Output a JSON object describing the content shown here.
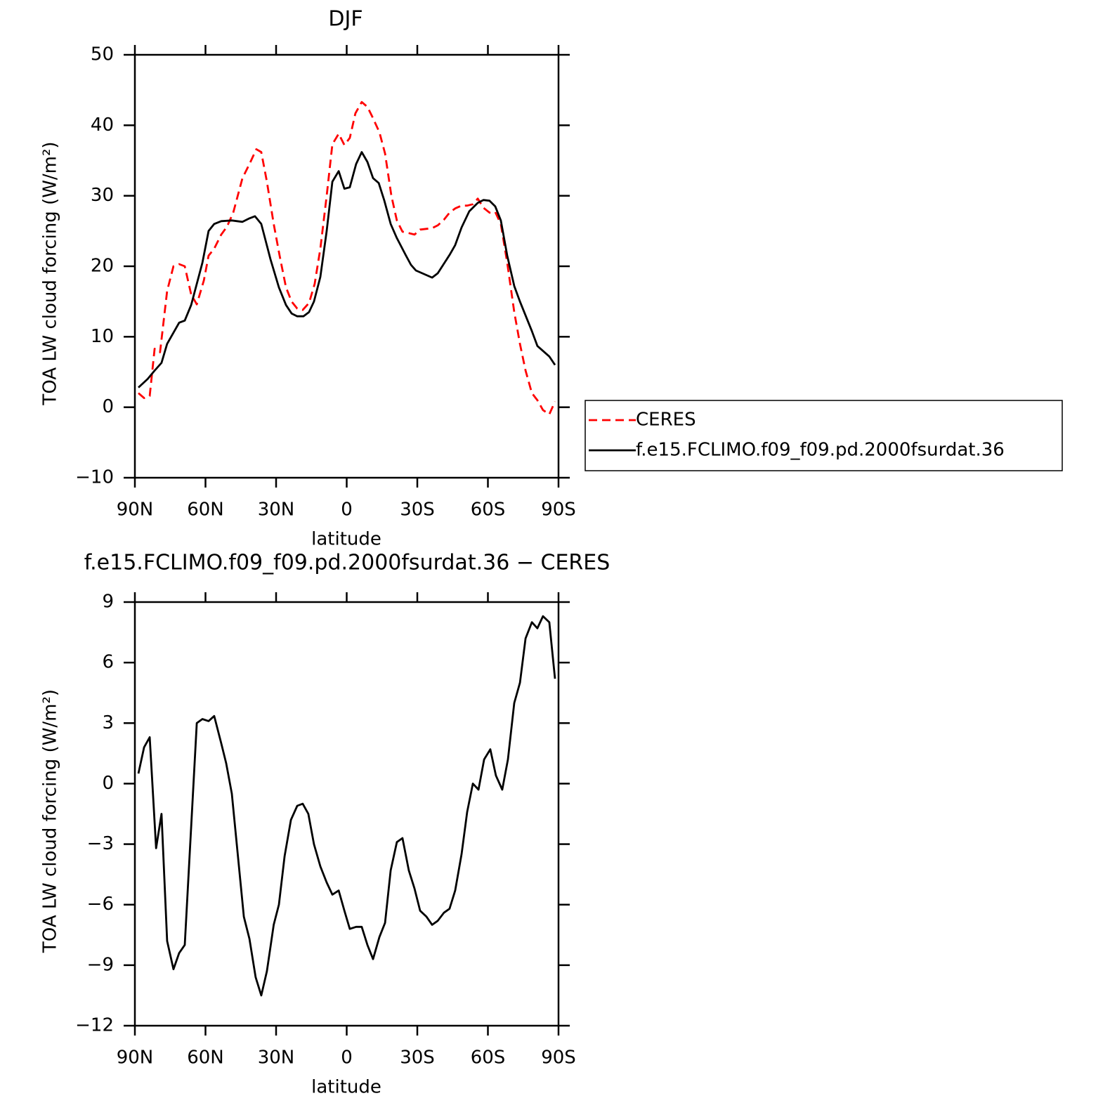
{
  "chart_data": [
    {
      "type": "line",
      "title": "DJF",
      "xlabel": "latitude",
      "ylabel": "TOA LW cloud forcing (W/m²)",
      "xlim": [
        90,
        -90
      ],
      "xticks": [
        {
          "value": 90,
          "label": "90N"
        },
        {
          "value": 60,
          "label": "60N"
        },
        {
          "value": 30,
          "label": "30N"
        },
        0,
        {
          "value": -30,
          "label": "30S"
        },
        {
          "value": -60,
          "label": "60S"
        },
        {
          "value": -90,
          "label": "90S"
        }
      ],
      "ylim": [
        -10,
        50
      ],
      "yticks": [
        {
          "value": -10,
          "label": "−10"
        },
        0,
        10,
        20,
        30,
        40,
        50
      ],
      "legend": "right",
      "series": [
        {
          "name": "CERES",
          "color": "#ff0000",
          "dashed": true,
          "x": [
            88.5,
            86.1,
            83.7,
            81.6,
            79.3,
            76.3,
            73.6,
            71.2,
            68.8,
            66.1,
            63.7,
            60.7,
            58.7,
            56.3,
            53.3,
            50.9,
            48.2,
            44.3,
            41.3,
            38.4,
            36.3,
            33.9,
            31,
            28.5,
            25.8,
            23.4,
            21,
            18.7,
            16,
            13.6,
            11.2,
            8.5,
            6.1,
            3.4,
            1,
            -1.3,
            -3.7,
            -6.4,
            -8.8,
            -11.2,
            -13.9,
            -16.3,
            -19,
            -21.3,
            -23.7,
            -26.4,
            -28.8,
            -31.2,
            -36.3,
            -38.7,
            -41.3,
            -43.7,
            -46.1,
            -48.8,
            -51.2,
            -53.6,
            -55.7,
            -58.1,
            -60.7,
            -63.1,
            -65.5,
            -68.2,
            -71.2,
            -73.6,
            -76,
            -78.7,
            -81,
            -83.4,
            -86.1,
            -88.5
          ],
          "values": [
            2,
            1.3,
            1.6,
            8.3,
            7.8,
            16.5,
            20,
            20.3,
            20,
            16,
            14.6,
            18,
            21.5,
            22.5,
            24.5,
            25.6,
            27.6,
            32.5,
            34.5,
            36.6,
            36.2,
            32,
            26,
            21.5,
            17,
            15,
            14,
            13.8,
            14.8,
            17.5,
            22.5,
            30,
            37.3,
            38.8,
            37.2,
            38.2,
            41.7,
            43.3,
            42.6,
            41,
            39,
            36,
            30,
            26.5,
            24.9,
            24.7,
            24.5,
            25.2,
            25.4,
            25.8,
            26.6,
            27.6,
            28.2,
            28.6,
            28.6,
            28.8,
            29.6,
            28.3,
            27.6,
            27.7,
            26,
            20.5,
            13.5,
            9,
            5.2,
            2,
            1,
            -0.4,
            -1,
            0.8
          ]
        },
        {
          "name": "f.e15.FCLIMO.f09_f09.pd.2000fsurdat.36",
          "color": "#000000",
          "dashed": false,
          "x": [
            88.5,
            84.6,
            81.6,
            78.7,
            76.3,
            71.2,
            68.8,
            66.1,
            61.3,
            58.7,
            56.3,
            53.3,
            48.8,
            44.3,
            41.3,
            39,
            36.3,
            32.4,
            28.8,
            25.8,
            23.4,
            21,
            18.4,
            16,
            13.9,
            11.2,
            8.5,
            6.1,
            3.4,
            1,
            -1.3,
            -4,
            -6.4,
            -8.8,
            -11.2,
            -13.6,
            -16,
            -18.7,
            -21.3,
            -25.2,
            -27.3,
            -29.4,
            -36.3,
            -38.7,
            -43.7,
            -46.1,
            -48.8,
            -52.1,
            -55.7,
            -58.1,
            -60.7,
            -63.1,
            -65.5,
            -68.2,
            -71.2,
            -73.6,
            -78.7,
            -81,
            -86.1,
            -88.5
          ],
          "values": [
            2.8,
            4,
            5.2,
            6.3,
            9,
            12,
            12.3,
            14.5,
            20.5,
            25,
            26,
            26.4,
            26.5,
            26.3,
            26.8,
            27.1,
            26,
            21,
            17,
            14.5,
            13.3,
            12.9,
            12.9,
            13.5,
            15,
            18.5,
            25,
            32,
            33.5,
            31,
            31.2,
            34.5,
            36.2,
            34.8,
            32.5,
            31.8,
            29.3,
            26,
            24,
            21.5,
            20.2,
            19.4,
            18.4,
            19,
            21.6,
            23,
            25.5,
            27.8,
            29,
            29.4,
            29.3,
            28.5,
            26.5,
            21.5,
            17.2,
            15,
            10.8,
            8.7,
            7.2,
            6
          ]
        }
      ]
    },
    {
      "type": "line",
      "title": "f.e15.FCLIMO.f09_f09.pd.2000fsurdat.36 − CERES",
      "xlabel": "latitude",
      "ylabel": "TOA LW cloud forcing (W/m²)",
      "xlim": [
        90,
        -90
      ],
      "xticks": [
        {
          "value": 90,
          "label": "90N"
        },
        {
          "value": 60,
          "label": "60N"
        },
        {
          "value": 30,
          "label": "30N"
        },
        0,
        {
          "value": -30,
          "label": "30S"
        },
        {
          "value": -60,
          "label": "60S"
        },
        {
          "value": -90,
          "label": "90S"
        }
      ],
      "ylim": [
        -12,
        9
      ],
      "yticks": [
        {
          "value": -12,
          "label": "−12"
        },
        {
          "value": -9,
          "label": "−9"
        },
        {
          "value": -6,
          "label": "−6"
        },
        {
          "value": -3,
          "label": "−3"
        },
        0,
        3,
        6,
        9
      ],
      "series": [
        {
          "color": "#000000",
          "dashed": false,
          "x": [
            88.5,
            86.1,
            83.7,
            81,
            78.7,
            76.3,
            73.6,
            71.2,
            68.8,
            63.7,
            61.3,
            58.7,
            56.3,
            53.3,
            51.2,
            48.8,
            43.7,
            41.3,
            38.7,
            36.3,
            33.9,
            31,
            28.8,
            26.4,
            23.7,
            21,
            18.7,
            16.3,
            13.9,
            11.2,
            8.5,
            6.1,
            3.4,
            1,
            -1.3,
            -4,
            -6.4,
            -8.8,
            -11.2,
            -13.9,
            -16.3,
            -18.7,
            -21.3,
            -23.7,
            -26.4,
            -28.8,
            -31.2,
            -33.9,
            -36.3,
            -38.7,
            -41.3,
            -43.7,
            -46.1,
            -48.8,
            -51.2,
            -53.6,
            -56,
            -58.4,
            -61,
            -63.4,
            -66.1,
            -68.5,
            -71.2,
            -73.6,
            -76,
            -78.7,
            -81,
            -83.4,
            -86.1,
            -88.5
          ],
          "values": [
            0.5,
            1.8,
            2.3,
            -3.2,
            -1.5,
            -7.8,
            -9.2,
            -8.4,
            -8,
            3,
            3.2,
            3.1,
            3.35,
            2,
            1,
            -0.5,
            -6.6,
            -7.7,
            -9.6,
            -10.5,
            -9.3,
            -7,
            -6,
            -3.6,
            -1.8,
            -1.1,
            -1,
            -1.5,
            -3,
            -4.1,
            -4.9,
            -5.5,
            -5.3,
            -6.3,
            -7.2,
            -7.1,
            -7.1,
            -8,
            -8.7,
            -7.6,
            -6.9,
            -4.3,
            -2.9,
            -2.7,
            -4.3,
            -5.2,
            -6.3,
            -6.6,
            -7,
            -6.8,
            -6.4,
            -6.2,
            -5.3,
            -3.5,
            -1.4,
            0,
            -0.3,
            1.2,
            1.7,
            0.4,
            -0.3,
            1.2,
            4,
            5,
            7.2,
            8,
            7.7,
            8.3,
            8,
            5.2
          ]
        }
      ]
    }
  ]
}
